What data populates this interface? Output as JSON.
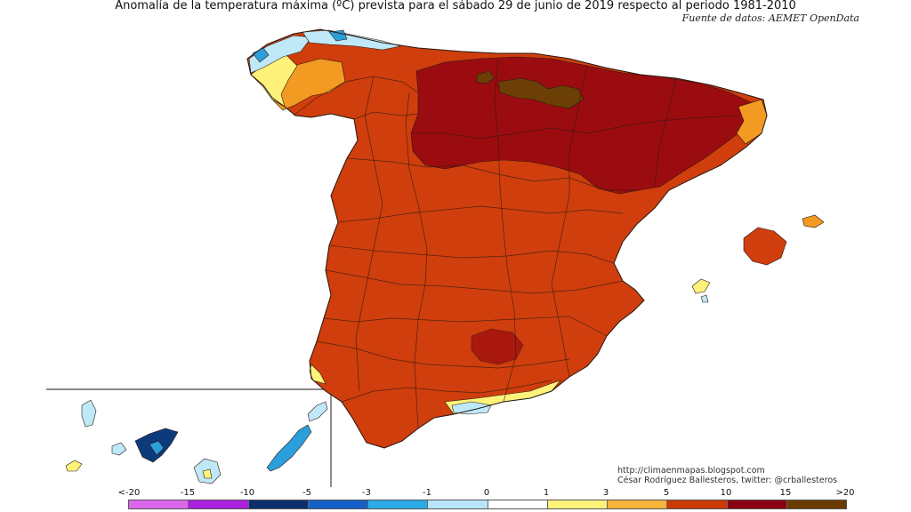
{
  "title": "Anomalía de la temperatura máxima (ºC) prevista para el sábado 29 de junio de 2019 respecto al periodo 1981-2010",
  "source": "Fuente de datos: AEMET OpenData",
  "credits": {
    "line1": "http://climaenmapas.blogspot.com",
    "line2": "César Rodríguez Ballesteros, twitter: @crballesteros"
  },
  "legend": {
    "labels": [
      "<-20",
      "-15",
      "-10",
      "-5",
      "-3",
      "-1",
      "0",
      "1",
      "3",
      "5",
      "10",
      "15",
      ">20"
    ],
    "colors": [
      "#dd66ee",
      "#aa22dd",
      "#6a00c8",
      "#0a2f6a",
      "#1560c8",
      "#2aaae6",
      "#b8e6f8",
      "#ffffff",
      "#fff27a",
      "#f7b43a",
      "#f08a1a",
      "#cc3a06",
      "#8b0010",
      "#6a3a00"
    ]
  },
  "map_colors": {
    "sea": "#ffffff",
    "base": "#cf3e0c",
    "hot": "#9b0c10",
    "very_hot": "#6b3f06",
    "warm": "#f29a22",
    "mild": "#fff27a",
    "cool": "#bfe8f8",
    "cold": "#2b9fdc",
    "very_cold": "#0d3a7a",
    "border": "#2a1a12"
  }
}
